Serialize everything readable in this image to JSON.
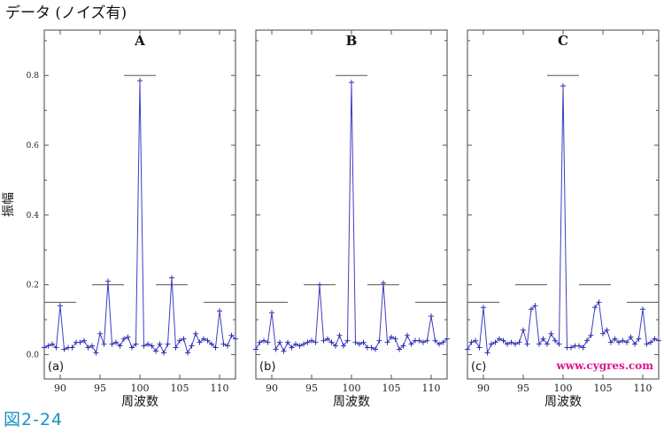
{
  "title": "データ (ノイズ有)",
  "figure_caption": "図2-24",
  "watermark": "www.cygres.com",
  "colors": {
    "series": "#3d3dc4",
    "caption": "#1a93c6",
    "watermark": "#e0128c"
  },
  "chart_data": [
    {
      "type": "line",
      "panel_title": "A",
      "panel_label": "(a)",
      "xlabel": "周波数",
      "ylabel": "振幅",
      "xlim": [
        88,
        112
      ],
      "ylim": [
        -0.07,
        0.93
      ],
      "x_ticks": [
        90,
        95,
        100,
        105,
        110
      ],
      "y_ticks": [
        0.0,
        0.2,
        0.4,
        0.6,
        0.8
      ],
      "y_tick_labels": [
        "0.0",
        "0.2",
        "0.4",
        "0.6",
        "0.8"
      ],
      "x": [
        88,
        88.5,
        89,
        89.5,
        90,
        90.5,
        91,
        91.5,
        92,
        92.5,
        93,
        93.5,
        94,
        94.5,
        95,
        95.5,
        96,
        96.5,
        97,
        97.5,
        98,
        98.5,
        99,
        99.5,
        100,
        100.5,
        101,
        101.5,
        102,
        102.5,
        103,
        103.5,
        104,
        104.5,
        105,
        105.5,
        106,
        106.5,
        107,
        107.5,
        108,
        108.5,
        109,
        109.5,
        110,
        110.5,
        111,
        111.5,
        112
      ],
      "y": [
        0.02,
        0.025,
        0.03,
        0.02,
        0.14,
        0.015,
        0.02,
        0.02,
        0.035,
        0.035,
        0.04,
        0.02,
        0.025,
        0.005,
        0.06,
        0.03,
        0.21,
        0.03,
        0.035,
        0.025,
        0.045,
        0.05,
        0.02,
        0.03,
        0.785,
        0.025,
        0.03,
        0.025,
        0.01,
        0.03,
        0.005,
        0.03,
        0.22,
        0.02,
        0.04,
        0.045,
        0.005,
        0.025,
        0.06,
        0.035,
        0.045,
        0.04,
        0.03,
        0.02,
        0.125,
        0.03,
        0.025,
        0.055,
        0.045
      ],
      "reference_lines": [
        {
          "x_start": 88,
          "x_end": 92,
          "y": 0.15
        },
        {
          "x_start": 94,
          "x_end": 98,
          "y": 0.2
        },
        {
          "x_start": 98,
          "x_end": 102,
          "y": 0.8
        },
        {
          "x_start": 102,
          "x_end": 106,
          "y": 0.2
        },
        {
          "x_start": 108,
          "x_end": 112,
          "y": 0.15
        }
      ]
    },
    {
      "type": "line",
      "panel_title": "B",
      "panel_label": "(b)",
      "xlabel": "周波数",
      "ylabel": "",
      "xlim": [
        88,
        112
      ],
      "ylim": [
        -0.07,
        0.93
      ],
      "x_ticks": [
        90,
        95,
        100,
        105,
        110
      ],
      "y_ticks": [
        0.0,
        0.2,
        0.4,
        0.6,
        0.8
      ],
      "y_tick_labels": [
        "",
        "",
        "",
        "",
        ""
      ],
      "x": [
        88,
        88.5,
        89,
        89.5,
        90,
        90.5,
        91,
        91.5,
        92,
        92.5,
        93,
        93.5,
        94,
        94.5,
        95,
        95.5,
        96,
        96.5,
        97,
        97.5,
        98,
        98.5,
        99,
        99.5,
        100,
        100.5,
        101,
        101.5,
        102,
        102.5,
        103,
        103.5,
        104,
        104.5,
        105,
        105.5,
        106,
        106.5,
        107,
        107.5,
        108,
        108.5,
        109,
        109.5,
        110,
        110.5,
        111,
        111.5,
        112
      ],
      "y": [
        0.015,
        0.035,
        0.04,
        0.035,
        0.12,
        0.015,
        0.035,
        0.01,
        0.035,
        0.02,
        0.03,
        0.025,
        0.03,
        0.035,
        0.04,
        0.035,
        0.2,
        0.04,
        0.045,
        0.035,
        0.025,
        0.055,
        0.025,
        0.04,
        0.78,
        0.035,
        0.03,
        0.035,
        0.02,
        0.02,
        0.015,
        0.04,
        0.205,
        0.035,
        0.05,
        0.045,
        0.015,
        0.025,
        0.055,
        0.03,
        0.04,
        0.04,
        0.035,
        0.04,
        0.11,
        0.04,
        0.03,
        0.035,
        0.045
      ],
      "reference_lines": [
        {
          "x_start": 88,
          "x_end": 92,
          "y": 0.15
        },
        {
          "x_start": 94,
          "x_end": 98,
          "y": 0.2
        },
        {
          "x_start": 98,
          "x_end": 102,
          "y": 0.8
        },
        {
          "x_start": 102,
          "x_end": 106,
          "y": 0.2
        },
        {
          "x_start": 108,
          "x_end": 112,
          "y": 0.15
        }
      ]
    },
    {
      "type": "line",
      "panel_title": "C",
      "panel_label": "(c)",
      "xlabel": "周波数",
      "ylabel": "",
      "xlim": [
        88,
        112
      ],
      "ylim": [
        -0.07,
        0.93
      ],
      "x_ticks": [
        90,
        95,
        100,
        105,
        110
      ],
      "y_ticks": [
        0.0,
        0.2,
        0.4,
        0.6,
        0.8
      ],
      "y_tick_labels": [
        "",
        "",
        "",
        "",
        ""
      ],
      "x": [
        88,
        88.5,
        89,
        89.5,
        90,
        90.5,
        91,
        91.5,
        92,
        92.5,
        93,
        93.5,
        94,
        94.5,
        95,
        95.5,
        96,
        96.5,
        97,
        97.5,
        98,
        98.5,
        99,
        99.5,
        100,
        100.5,
        101,
        101.5,
        102,
        102.5,
        103,
        103.5,
        104,
        104.5,
        105,
        105.5,
        106,
        106.5,
        107,
        107.5,
        108,
        108.5,
        109,
        109.5,
        110,
        110.5,
        111,
        111.5,
        112
      ],
      "y": [
        0.015,
        0.035,
        0.04,
        0.02,
        0.135,
        0.005,
        0.03,
        0.035,
        0.045,
        0.04,
        0.03,
        0.035,
        0.03,
        0.035,
        0.07,
        0.03,
        0.13,
        0.14,
        0.03,
        0.045,
        0.03,
        0.06,
        0.04,
        0.03,
        0.77,
        0.02,
        0.02,
        0.025,
        0.025,
        0.02,
        0.04,
        0.055,
        0.135,
        0.15,
        0.06,
        0.07,
        0.035,
        0.045,
        0.035,
        0.04,
        0.035,
        0.05,
        0.03,
        0.045,
        0.13,
        0.03,
        0.035,
        0.045,
        0.04
      ],
      "reference_lines": [
        {
          "x_start": 88,
          "x_end": 92,
          "y": 0.15
        },
        {
          "x_start": 94,
          "x_end": 98,
          "y": 0.2
        },
        {
          "x_start": 98,
          "x_end": 102,
          "y": 0.8
        },
        {
          "x_start": 102,
          "x_end": 106,
          "y": 0.2
        },
        {
          "x_start": 108,
          "x_end": 112,
          "y": 0.15
        }
      ]
    }
  ]
}
